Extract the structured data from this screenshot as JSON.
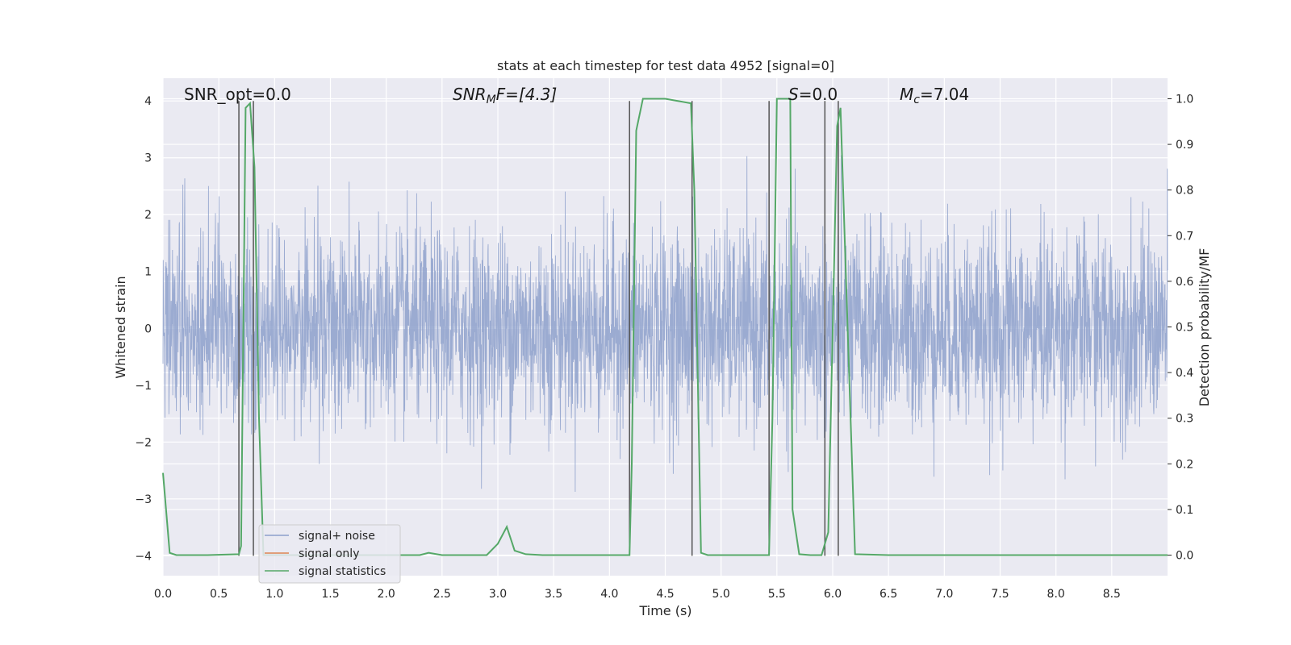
{
  "chart_data": {
    "type": "line",
    "title": "stats at each timestep for test data 4952 [signal=0]",
    "xlabel": "Time (s)",
    "ylabel_left": "Whitened strain",
    "ylabel_right": "Detection probability/MF",
    "xlim": [
      0,
      9.0
    ],
    "ylim_left": [
      -4.35,
      4.4
    ],
    "ylim_right": [
      -0.045,
      1.045
    ],
    "x_ticks": [
      "0.0",
      "0.5",
      "1.0",
      "1.5",
      "2.0",
      "2.5",
      "3.0",
      "3.5",
      "4.0",
      "4.5",
      "5.0",
      "5.5",
      "6.0",
      "6.5",
      "7.0",
      "7.5",
      "8.0",
      "8.5"
    ],
    "y_ticks_left": [
      "−4",
      "−3",
      "−2",
      "−1",
      "0",
      "1",
      "2",
      "3",
      "4"
    ],
    "y_ticks_right": [
      "0.0",
      "0.1",
      "0.2",
      "0.3",
      "0.4",
      "0.5",
      "0.6",
      "0.7",
      "0.8",
      "0.9",
      "1.0"
    ],
    "grid": true,
    "legend_position": "lower-left",
    "annotations": {
      "snr_opt": "SNR_opt=0.0",
      "snr_mf_main": "SNR",
      "snr_mf_sub": "M",
      "snr_mf_rest": "F=[4.3]",
      "s_main": "S",
      "s_rest": "=0.0",
      "mc_main": "M",
      "mc_sub": "c",
      "mc_rest": "=7.04"
    },
    "series": [
      {
        "name": "signal+ noise",
        "color": "#8da0cb",
        "axis": "left",
        "noise_std": 0.85,
        "approx_range": [
          -4.0,
          4.0
        ]
      },
      {
        "name": "signal only",
        "color": "#dd8452",
        "axis": "left",
        "x": [
          0,
          9.0
        ],
        "y": [
          0,
          0
        ]
      },
      {
        "name": "signal statistics",
        "color": "#55a868",
        "axis": "right",
        "x": [
          0.0,
          0.06,
          0.12,
          0.4,
          0.68,
          0.7,
          0.74,
          0.78,
          0.82,
          0.86,
          0.9,
          1.0,
          1.5,
          2.0,
          2.2,
          2.3,
          2.38,
          2.5,
          2.9,
          3.0,
          3.08,
          3.15,
          3.25,
          3.4,
          3.8,
          4.18,
          4.2,
          4.24,
          4.3,
          4.5,
          4.73,
          4.76,
          4.82,
          4.88,
          5.0,
          5.43,
          5.46,
          5.5,
          5.62,
          5.64,
          5.7,
          5.8,
          5.9,
          5.96,
          6.04,
          6.07,
          6.12,
          6.2,
          6.5,
          7.0,
          8.0,
          9.0
        ],
        "y": [
          0.18,
          0.005,
          0.0,
          0.0,
          0.002,
          0.02,
          0.98,
          0.99,
          0.85,
          0.3,
          0.0,
          0.0,
          0.0,
          0.0,
          0.0,
          0.0,
          0.005,
          0.0,
          0.0,
          0.025,
          0.062,
          0.01,
          0.002,
          0.0,
          0.0,
          0.0,
          0.2,
          0.93,
          1.0,
          1.0,
          0.99,
          0.8,
          0.005,
          0.0,
          0.0,
          0.0,
          0.3,
          1.0,
          1.0,
          0.1,
          0.002,
          0.0,
          0.0,
          0.05,
          0.94,
          0.98,
          0.6,
          0.002,
          0.0,
          0.0,
          0.0,
          0.0
        ]
      }
    ],
    "vertical_markers": [
      0.68,
      0.81,
      4.18,
      4.74,
      5.43,
      5.93,
      6.05
    ]
  }
}
